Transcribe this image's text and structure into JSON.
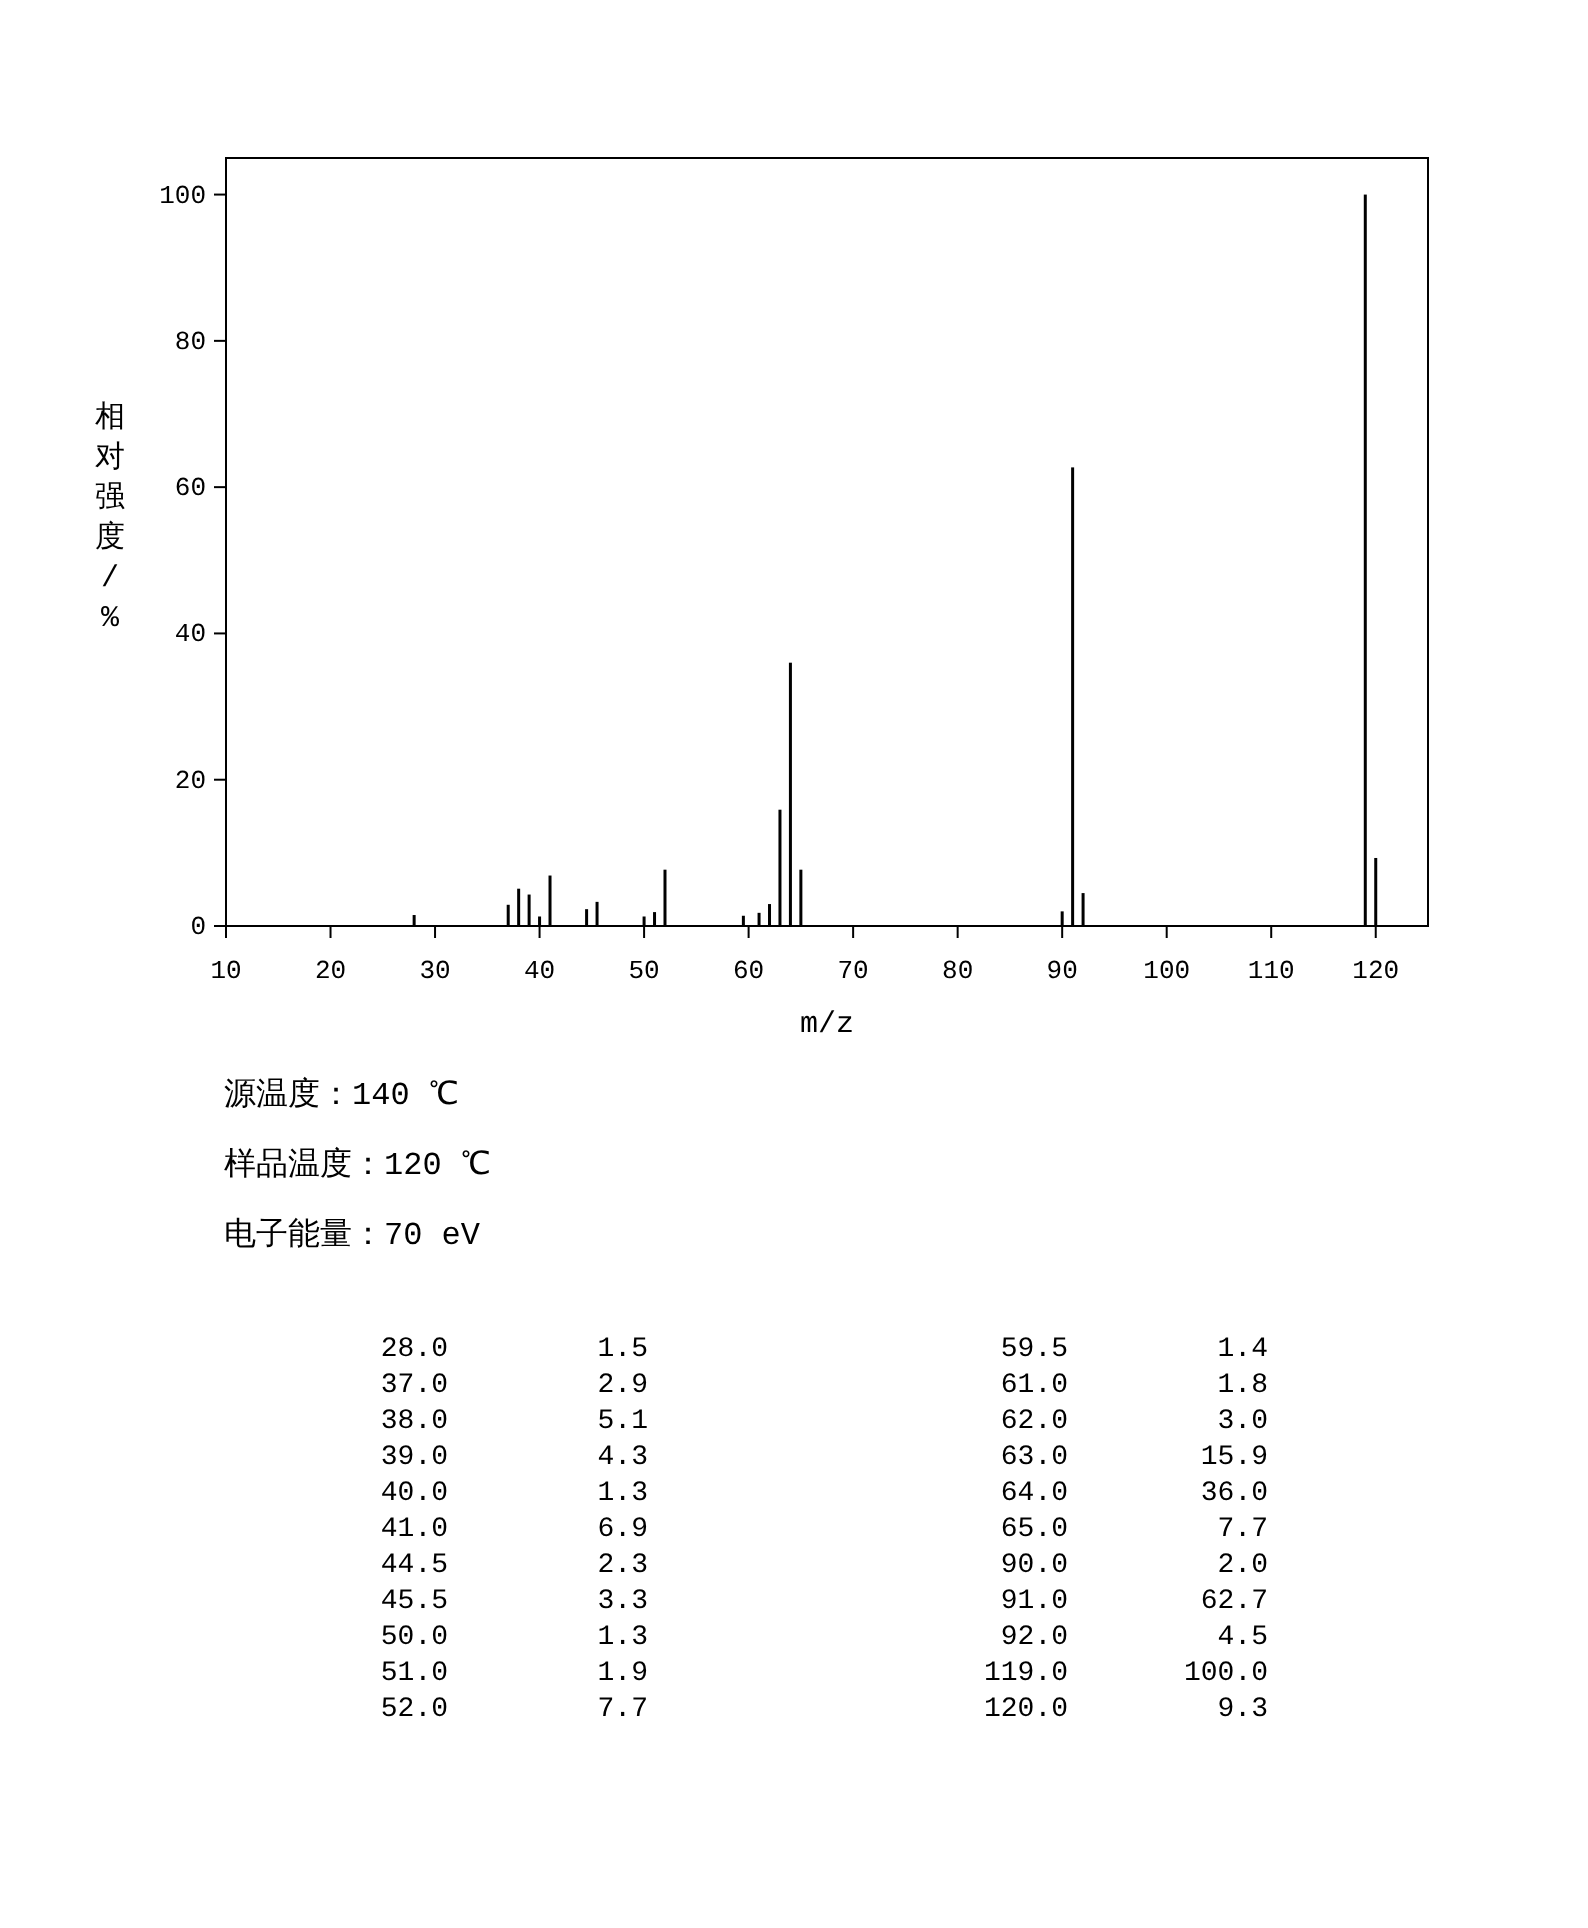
{
  "chart_data": {
    "type": "bar",
    "xlabel": "m/z",
    "ylabel": "相对强度/%",
    "x": [
      28.0,
      37.0,
      38.0,
      39.0,
      40.0,
      41.0,
      44.5,
      45.5,
      50.0,
      51.0,
      52.0,
      59.5,
      61.0,
      62.0,
      63.0,
      64.0,
      65.0,
      90.0,
      91.0,
      92.0,
      119.0,
      120.0
    ],
    "values": [
      1.5,
      2.9,
      5.1,
      4.3,
      1.3,
      6.9,
      2.3,
      3.3,
      1.3,
      1.9,
      7.7,
      1.4,
      1.8,
      3.0,
      15.9,
      36.0,
      7.7,
      2.0,
      62.7,
      4.5,
      100.0,
      9.3
    ],
    "color": "#000000",
    "xlim": [
      10,
      125
    ],
    "xticks": [
      10,
      20,
      30,
      40,
      50,
      60,
      70,
      80,
      90,
      100,
      110,
      120
    ],
    "ylim": [
      0,
      105
    ],
    "yticks": [
      0,
      20,
      40,
      60,
      80,
      100
    ],
    "grid": false,
    "annotations": [
      "源温度：140 ℃",
      "样品温度：120 ℃",
      "电子能量：70 eV",
      "28.0",
      "1.5",
      "37.0",
      "2.9",
      "38.0",
      "5.1",
      "39.0",
      "4.3",
      "40.0",
      "1.3",
      "41.0",
      "6.9",
      "44.5",
      "2.3",
      "45.5",
      "3.3",
      "50.0",
      "1.3",
      "51.0",
      "1.9",
      "52.0",
      "7.7",
      "59.5",
      "1.4",
      "61.0",
      "1.8",
      "62.0",
      "3.0",
      "63.0",
      "15.9",
      "64.0",
      "36.0",
      "65.0",
      "7.7",
      "90.0",
      "2.0",
      "91.0",
      "62.7",
      "92.0",
      "4.5",
      "119.0",
      "100.0",
      "120.0",
      "9.3"
    ]
  }
}
